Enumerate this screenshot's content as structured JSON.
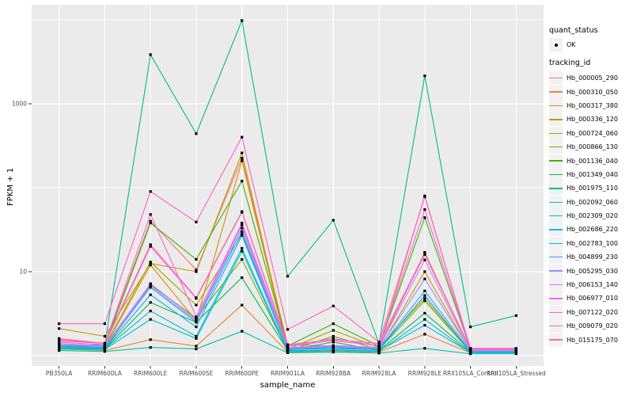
{
  "figure": {
    "panel_background": "#EBEBEB",
    "gridline_color": "#FFFFFF",
    "tick_color": "#333333",
    "tick_label_color": "#4D4D4D",
    "legend_key_fill": "#F2F2F2",
    "point_color": "#000000"
  },
  "chart_data": {
    "type": "line",
    "title": "",
    "xlabel": "sample_name",
    "ylabel": "FPKM + 1",
    "y_scale": "log10",
    "y_ticks": [
      {
        "label": "10",
        "value": 10
      },
      {
        "label": "1000",
        "value": 1000
      }
    ],
    "y_minor_gridlines": [
      1,
      100,
      10000
    ],
    "legend": {
      "quant_status_title": "quant_status",
      "quant_status_items": [
        {
          "label": "OK",
          "marker": "point"
        }
      ],
      "tracking_id_title": "tracking_id",
      "position": "right"
    },
    "categories": [
      "PB350LA",
      "RRIM600LA",
      "RRIM600LE",
      "RRIM600SE",
      "RRIM600PE",
      "RRIM901LA",
      "RRIM928BA",
      "RRIM928LA",
      "RRIM928LE",
      "RRII105LA_Control",
      "RRII105LA_Stressed"
    ],
    "values_are": "FPKM + 1",
    "series": [
      {
        "name": "Hb_000005_290",
        "color": "#F8766D",
        "values": [
          1.6,
          1.4,
          40,
          10.5,
          225,
          1.35,
          1.3,
          1.25,
          80,
          1.15,
          1.15
        ]
      },
      {
        "name": "Hb_000310_050",
        "color": "#EA8331",
        "values": [
          1.2,
          1.15,
          1.55,
          1.3,
          4.0,
          1.1,
          1.12,
          1.1,
          1.8,
          1.08,
          1.08
        ]
      },
      {
        "name": "Hb_000317_380",
        "color": "#D89000",
        "values": [
          1.3,
          1.25,
          12,
          2.6,
          210,
          1.2,
          1.22,
          1.18,
          10,
          1.12,
          1.12
        ]
      },
      {
        "name": "Hb_000336_120",
        "color": "#C09B00",
        "values": [
          2.1,
          1.7,
          12.5,
          10,
          260,
          1.25,
          1.3,
          1.22,
          17,
          1.16,
          1.16
        ]
      },
      {
        "name": "Hb_000724_060",
        "color": "#A3A500",
        "values": [
          1.35,
          1.3,
          13,
          4.0,
          28,
          1.2,
          2.0,
          1.25,
          4.8,
          1.12,
          1.12
        ]
      },
      {
        "name": "Hb_000866_130",
        "color": "#7CAE00",
        "values": [
          1.25,
          1.2,
          7.0,
          2.8,
          14,
          1.15,
          1.7,
          1.18,
          4.5,
          1.1,
          1.1
        ]
      },
      {
        "name": "Hb_001136_040",
        "color": "#39B600",
        "values": [
          1.3,
          1.3,
          38,
          14,
          120,
          1.3,
          2.4,
          1.3,
          44,
          1.2,
          1.2
        ]
      },
      {
        "name": "Hb_001349_040",
        "color": "#00BB4E",
        "values": [
          1.2,
          1.2,
          4.3,
          2.5,
          8.5,
          1.15,
          1.45,
          1.15,
          3.2,
          1.1,
          1.1
        ]
      },
      {
        "name": "Hb_001975_110",
        "color": "#00BF7D",
        "values": [
          1.3,
          1.35,
          3850,
          440,
          9800,
          8.8,
          41,
          1.4,
          2150,
          2.2,
          3.0
        ]
      },
      {
        "name": "Hb_002092_060",
        "color": "#00C1A3",
        "values": [
          1.15,
          1.12,
          1.25,
          1.2,
          1.95,
          1.08,
          1.1,
          1.07,
          1.22,
          1.05,
          1.05
        ]
      },
      {
        "name": "Hb_002309_020",
        "color": "#00BFC4",
        "values": [
          1.2,
          1.18,
          2.7,
          1.6,
          17.5,
          1.12,
          1.15,
          1.12,
          2.7,
          1.08,
          1.08
        ]
      },
      {
        "name": "Hb_002686_220",
        "color": "#00BAE0",
        "values": [
          1.22,
          1.2,
          3.4,
          1.7,
          19,
          1.14,
          1.18,
          1.14,
          2.3,
          1.09,
          1.09
        ]
      },
      {
        "name": "Hb_002783_100",
        "color": "#00B0F6",
        "values": [
          1.28,
          1.22,
          5.3,
          2.2,
          27,
          1.18,
          1.22,
          1.18,
          5.2,
          1.1,
          1.1
        ]
      },
      {
        "name": "Hb_004899_230",
        "color": "#35A2FF",
        "values": [
          1.3,
          1.25,
          6.5,
          2.5,
          30,
          1.2,
          1.25,
          1.2,
          5.9,
          1.12,
          1.12
        ]
      },
      {
        "name": "Hb_005295_030",
        "color": "#9590FF",
        "values": [
          1.35,
          1.28,
          6.8,
          2.6,
          33,
          1.22,
          1.28,
          1.22,
          8.2,
          1.14,
          1.14
        ]
      },
      {
        "name": "Hb_006153_140",
        "color": "#C77CFF",
        "values": [
          1.4,
          1.3,
          7.2,
          2.7,
          36,
          1.25,
          1.32,
          1.25,
          13.8,
          1.15,
          1.15
        ]
      },
      {
        "name": "Hb_006977_010",
        "color": "#E76BF3",
        "values": [
          1.45,
          1.35,
          20,
          4.8,
          51,
          1.3,
          1.6,
          1.3,
          16,
          1.18,
          1.18
        ]
      },
      {
        "name": "Hb_007122_020",
        "color": "#FA62DB",
        "values": [
          1.5,
          1.4,
          48,
          2.9,
          38,
          1.3,
          1.5,
          1.32,
          55,
          1.2,
          1.2
        ]
      },
      {
        "name": "Hb_009079_020",
        "color": "#FF62BC",
        "values": [
          2.4,
          2.4,
          90,
          39,
          400,
          2.05,
          3.9,
          1.45,
          78,
          1.22,
          1.22
        ]
      },
      {
        "name": "Hb_015175_070",
        "color": "#FF6A98",
        "values": [
          1.55,
          1.4,
          21,
          4.9,
          52,
          1.35,
          1.55,
          1.4,
          16.5,
          1.2,
          1.2
        ]
      }
    ]
  }
}
